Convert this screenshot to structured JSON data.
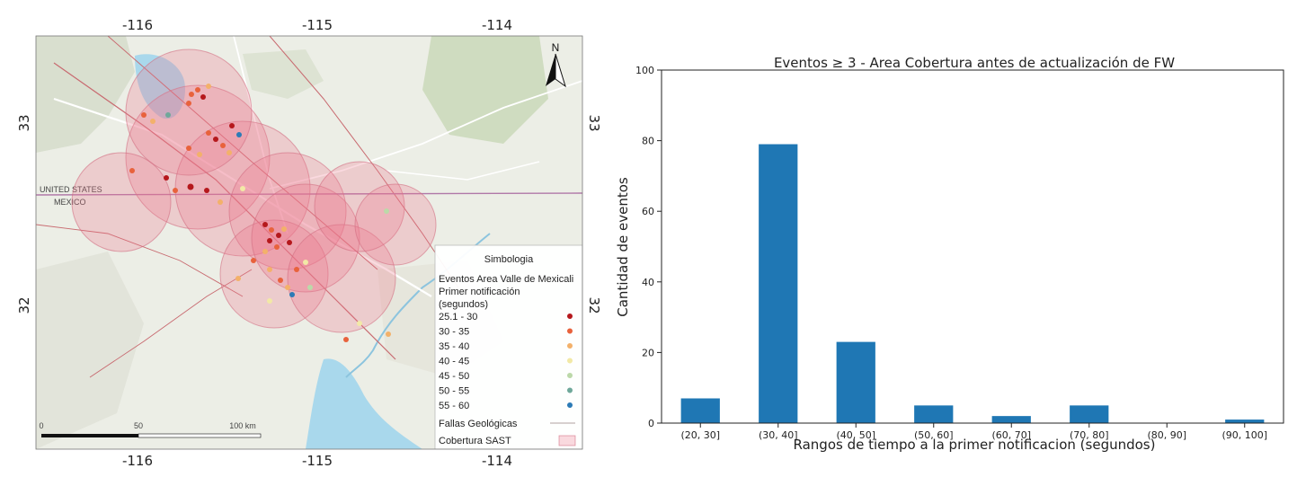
{
  "map": {
    "top_ticks": [
      "-116",
      "-115",
      "-114"
    ],
    "bottom_ticks": [
      "-116",
      "-115",
      "-114"
    ],
    "left_ticks": [
      "33",
      "32"
    ],
    "right_ticks": [
      "33",
      "32"
    ],
    "north_label": "N",
    "country_labels": [
      "UNITED STATES",
      "MEXICO"
    ],
    "scale_bar": {
      "labels": [
        "0",
        "50",
        "100 km"
      ]
    },
    "legend": {
      "title": "Simbologia",
      "subtitle_lines": [
        "Eventos Area Valle de Mexicali",
        "Primer notificación",
        "(segundos)"
      ],
      "classes": [
        {
          "label": "25.1 - 30",
          "color": "#b5181c"
        },
        {
          "label": "30 - 35",
          "color": "#e8623c"
        },
        {
          "label": "35 - 40",
          "color": "#f3b16a"
        },
        {
          "label": "40 - 45",
          "color": "#f2e9a6"
        },
        {
          "label": "45 - 50",
          "color": "#bcd9a9"
        },
        {
          "label": "50 - 55",
          "color": "#6fa89a"
        },
        {
          "label": "55 - 60",
          "color": "#2c7bb6"
        }
      ],
      "faults_label": "Fallas Geológicas",
      "coverage_label": "Cobertura SAST"
    }
  },
  "chart_data": {
    "type": "bar",
    "title": "Eventos  ≥  3 - Area Cobertura antes de actualización de FW",
    "xlabel": "Rangos de tiempo a la primer notificacion (segundos)",
    "ylabel": "Cantidad de eventos",
    "categories": [
      "(20, 30]",
      "(30, 40]",
      "(40, 50]",
      "(50, 60]",
      "(60, 70]",
      "(70, 80]",
      "(80, 90]",
      "(90, 100]"
    ],
    "values": [
      7,
      79,
      23,
      5,
      2,
      5,
      0,
      1
    ],
    "ylim": [
      0,
      100
    ],
    "yticks": [
      0,
      20,
      40,
      60,
      80,
      100
    ],
    "bar_color": "#1f77b4",
    "grid": false
  }
}
